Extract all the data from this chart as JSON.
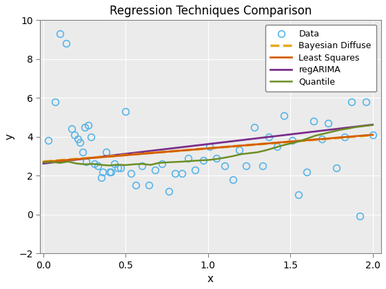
{
  "title": "Regression Techniques Comparison",
  "xlabel": "x",
  "ylabel": "y",
  "xlim": [
    -0.02,
    2.05
  ],
  "ylim": [
    -2,
    10
  ],
  "xticks": [
    0,
    0.5,
    1.0,
    1.5,
    2.0
  ],
  "yticks": [
    -2,
    0,
    2,
    4,
    6,
    8,
    10
  ],
  "data_x": [
    0.03,
    0.07,
    0.1,
    0.14,
    0.17,
    0.19,
    0.21,
    0.22,
    0.24,
    0.25,
    0.26,
    0.27,
    0.29,
    0.31,
    0.33,
    0.35,
    0.36,
    0.38,
    0.4,
    0.41,
    0.43,
    0.45,
    0.47,
    0.5,
    0.53,
    0.56,
    0.6,
    0.64,
    0.68,
    0.72,
    0.76,
    0.8,
    0.84,
    0.88,
    0.92,
    0.97,
    1.01,
    1.05,
    1.1,
    1.15,
    1.19,
    1.23,
    1.28,
    1.33,
    1.37,
    1.42,
    1.46,
    1.51,
    1.55,
    1.6,
    1.64,
    1.69,
    1.73,
    1.78,
    1.83,
    1.87,
    1.92,
    1.96,
    2.0
  ],
  "data_y": [
    3.8,
    5.8,
    9.3,
    8.8,
    4.4,
    4.1,
    3.9,
    3.7,
    3.2,
    4.5,
    2.7,
    4.6,
    4.0,
    2.6,
    2.5,
    1.9,
    2.2,
    3.2,
    2.2,
    2.2,
    2.6,
    2.4,
    2.4,
    5.3,
    2.1,
    1.5,
    2.5,
    1.5,
    2.3,
    2.6,
    1.2,
    2.1,
    2.1,
    2.9,
    2.3,
    2.8,
    3.5,
    2.9,
    2.5,
    1.8,
    3.3,
    2.5,
    4.5,
    2.5,
    4.0,
    3.5,
    5.1,
    3.8,
    1.0,
    2.2,
    4.8,
    3.9,
    4.7,
    2.4,
    4.0,
    5.8,
    -0.1,
    5.8,
    4.1
  ],
  "data_color": "#56B4E9",
  "data_markersize": 7,
  "data_markeredgewidth": 1.2,
  "ls_color": "#D55E00",
  "ls_intercept": 2.7,
  "ls_slope": 0.7,
  "bd_color": "#E6A817",
  "bd_intercept": 2.72,
  "bd_slope": 0.68,
  "rA_color": "#7B2D8B",
  "rA_intercept": 2.62,
  "rA_slope": 1.0,
  "qt_color": "#6B8E23",
  "qt_x": [
    0.0,
    0.05,
    0.1,
    0.15,
    0.2,
    0.25,
    0.3,
    0.35,
    0.4,
    0.45,
    0.5,
    0.55,
    0.6,
    0.65,
    0.7,
    0.75,
    0.8,
    0.85,
    0.9,
    0.95,
    1.0,
    1.05,
    1.1,
    1.15,
    1.2,
    1.25,
    1.3,
    1.35,
    1.4,
    1.45,
    1.5,
    1.55,
    1.6,
    1.65,
    1.7,
    1.75,
    1.8,
    1.85,
    1.9,
    1.95,
    2.0
  ],
  "qt_y": [
    2.68,
    2.7,
    2.65,
    2.72,
    2.62,
    2.58,
    2.6,
    2.55,
    2.52,
    2.56,
    2.54,
    2.58,
    2.6,
    2.55,
    2.65,
    2.68,
    2.7,
    2.72,
    2.75,
    2.78,
    2.8,
    2.85,
    2.92,
    3.0,
    3.1,
    3.15,
    3.2,
    3.3,
    3.42,
    3.55,
    3.65,
    3.75,
    3.9,
    4.05,
    4.15,
    4.25,
    4.35,
    4.42,
    4.5,
    4.55,
    4.6
  ],
  "legend_labels": [
    "Data",
    "Least Squares",
    "Bayesian Diffuse",
    "regARIMA",
    "Quantile"
  ],
  "legend_loc": "upper right",
  "bg_color": "#EBEBEB",
  "grid_color": "white"
}
